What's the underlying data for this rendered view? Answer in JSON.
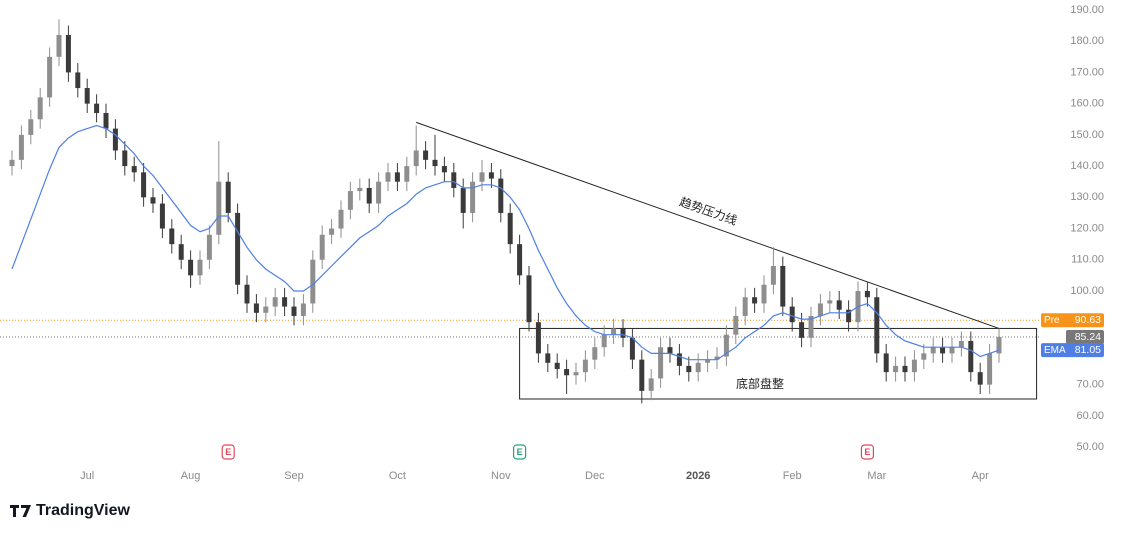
{
  "chart_data": {
    "type": "candlestick",
    "categories": [
      null,
      null,
      null,
      null,
      null,
      null,
      null,
      null,
      "Jul",
      null,
      null,
      null,
      null,
      null,
      null,
      null,
      null,
      null,
      null,
      "Aug",
      null,
      null,
      null,
      null,
      null,
      null,
      null,
      null,
      null,
      null,
      "Sep",
      null,
      null,
      null,
      null,
      null,
      null,
      null,
      null,
      null,
      null,
      "Oct",
      null,
      null,
      null,
      null,
      null,
      null,
      null,
      null,
      null,
      null,
      "Nov",
      null,
      null,
      null,
      null,
      null,
      null,
      null,
      null,
      null,
      "Dec",
      null,
      null,
      null,
      null,
      null,
      null,
      null,
      null,
      null,
      null,
      "2026",
      null,
      null,
      null,
      null,
      null,
      null,
      null,
      null,
      null,
      "Feb",
      null,
      null,
      null,
      null,
      null,
      null,
      null,
      null,
      "Mar",
      null,
      null,
      null,
      null,
      null,
      null,
      null,
      null,
      null,
      null,
      "Apr",
      null,
      null
    ],
    "open": [
      140,
      142,
      150,
      155,
      162,
      175,
      182,
      170,
      165,
      160,
      157,
      152,
      145,
      140,
      138,
      130,
      128,
      120,
      115,
      110,
      105,
      110,
      118,
      135,
      125,
      102,
      96,
      93,
      95,
      98,
      95,
      92,
      96,
      110,
      118,
      120,
      126,
      132,
      133,
      128,
      135,
      138,
      135,
      140,
      145,
      142,
      140,
      138,
      133,
      125,
      135,
      138,
      136,
      125,
      115,
      105,
      90,
      80,
      77,
      75,
      73,
      74,
      78,
      82,
      86,
      88,
      85,
      78,
      68,
      72,
      82,
      80,
      76,
      74,
      77,
      78,
      79,
      86,
      92,
      98,
      96,
      102,
      108,
      95,
      90,
      85,
      92,
      96,
      97,
      94,
      90,
      100,
      98,
      80,
      74,
      76,
      74,
      78,
      80,
      82,
      80,
      82,
      84,
      74,
      70,
      80
    ],
    "high": [
      145,
      153,
      158,
      165,
      178,
      187,
      185,
      173,
      168,
      163,
      160,
      155,
      148,
      143,
      141,
      133,
      131,
      123,
      118,
      113,
      113,
      121,
      148,
      138,
      128,
      105,
      99,
      98,
      101,
      101,
      98,
      99,
      113,
      121,
      123,
      129,
      135,
      136,
      136,
      138,
      141,
      141,
      143,
      153,
      148,
      150,
      143,
      141,
      136,
      138,
      142,
      141,
      139,
      128,
      118,
      108,
      93,
      83,
      80,
      78,
      77,
      81,
      85,
      89,
      91,
      91,
      88,
      81,
      75,
      85,
      85,
      83,
      79,
      80,
      81,
      82,
      89,
      95,
      101,
      101,
      105,
      114,
      111,
      98,
      93,
      95,
      99,
      100,
      100,
      97,
      103,
      103,
      101,
      83,
      79,
      79,
      81,
      83,
      85,
      85,
      85,
      87,
      87,
      77,
      83,
      88
    ],
    "low": [
      137,
      139,
      147,
      152,
      159,
      172,
      167,
      162,
      157,
      154,
      149,
      142,
      137,
      135,
      127,
      125,
      117,
      112,
      107,
      101,
      102,
      107,
      115,
      122,
      99,
      93,
      90,
      90,
      92,
      92,
      89,
      89,
      93,
      107,
      115,
      117,
      123,
      129,
      125,
      125,
      132,
      132,
      132,
      137,
      139,
      137,
      135,
      130,
      120,
      122,
      132,
      133,
      122,
      112,
      102,
      87,
      77,
      74,
      72,
      67,
      70,
      71,
      75,
      79,
      83,
      82,
      75,
      64,
      65,
      69,
      77,
      73,
      71,
      71,
      74,
      75,
      76,
      83,
      89,
      93,
      93,
      99,
      92,
      87,
      82,
      82,
      89,
      93,
      91,
      87,
      87,
      95,
      77,
      71,
      71,
      71,
      71,
      75,
      77,
      77,
      77,
      79,
      71,
      67,
      67,
      77
    ],
    "close": [
      142,
      150,
      155,
      162,
      175,
      182,
      170,
      165,
      160,
      157,
      152,
      145,
      140,
      138,
      130,
      128,
      120,
      115,
      110,
      105,
      110,
      118,
      135,
      125,
      102,
      96,
      93,
      95,
      98,
      95,
      92,
      96,
      110,
      118,
      120,
      126,
      132,
      133,
      128,
      135,
      138,
      135,
      140,
      145,
      142,
      140,
      138,
      133,
      125,
      135,
      138,
      136,
      125,
      115,
      105,
      90,
      80,
      77,
      75,
      73,
      74,
      78,
      82,
      86,
      88,
      85,
      78,
      68,
      72,
      82,
      80,
      76,
      74,
      77,
      78,
      79,
      86,
      92,
      98,
      96,
      102,
      108,
      95,
      90,
      85,
      92,
      96,
      97,
      94,
      90,
      100,
      98,
      80,
      74,
      76,
      74,
      78,
      80,
      82,
      80,
      82,
      84,
      74,
      70,
      80,
      85.24
    ],
    "up_color": "#8e8e8e",
    "down_color": "#3a3a3a",
    "lines": [
      {
        "name": "EMA",
        "color": "#4f7fe6",
        "values": [
          107,
          115,
          123,
          131,
          139,
          146,
          149,
          151,
          152,
          153,
          152,
          150,
          147,
          144,
          140,
          137,
          133,
          129,
          125,
          121,
          119,
          120,
          124,
          124,
          119,
          114,
          110,
          107,
          105,
          103,
          100,
          100,
          102,
          105,
          108,
          111,
          114,
          117,
          119,
          121,
          124,
          126,
          128,
          131,
          133,
          134,
          135,
          135,
          133,
          133,
          134,
          134,
          133,
          130,
          126,
          120,
          113,
          107,
          101,
          96,
          92,
          89,
          87,
          86,
          86,
          86,
          85,
          82,
          80,
          80,
          80,
          79,
          78,
          78,
          78,
          78,
          80,
          82,
          85,
          87,
          89,
          92,
          93,
          92,
          91,
          91,
          92,
          93,
          93,
          93,
          95,
          96,
          93,
          89,
          86,
          84,
          83,
          82,
          82,
          82,
          82,
          82,
          81,
          79,
          80,
          81.05
        ]
      }
    ],
    "pre": {
      "label": "Pre",
      "value": 90.63,
      "color": "#f7931a"
    },
    "last_color": "#787878",
    "trendline": {
      "label": "趋势压力线",
      "from": [
        43,
        154
      ],
      "to": [
        105,
        88
      ]
    },
    "box": {
      "label": "底部盘整",
      "x": [
        54,
        109
      ],
      "y": [
        65.4,
        88
      ]
    },
    "events": [
      {
        "index": 23,
        "label": "E",
        "color": "#e2475b"
      },
      {
        "index": 54,
        "label": "E",
        "color": "#22a37a"
      },
      {
        "index": 91,
        "label": "E",
        "color": "#e2475b"
      }
    ],
    "ylim": [
      46.5,
      193.2
    ],
    "yticks": [
      {
        "value": 50,
        "label": "50.00"
      },
      {
        "value": 60,
        "label": "60.00"
      },
      {
        "value": 70,
        "label": "70.00"
      },
      {
        "value": 80,
        "label": "80.00"
      },
      {
        "value": 90,
        "label": "90.00"
      },
      {
        "value": 100,
        "label": "100.00"
      },
      {
        "value": 110,
        "label": "110.00"
      },
      {
        "value": 120,
        "label": "120.00"
      },
      {
        "value": 130,
        "label": "130.00"
      },
      {
        "value": 140,
        "label": "140.00"
      },
      {
        "value": 150,
        "label": "150.00"
      },
      {
        "value": 160,
        "label": "160.00"
      },
      {
        "value": 170,
        "label": "170.00"
      },
      {
        "value": 180,
        "label": "180.00"
      },
      {
        "value": 190,
        "label": "190.00"
      }
    ]
  },
  "brand": "TradingView"
}
